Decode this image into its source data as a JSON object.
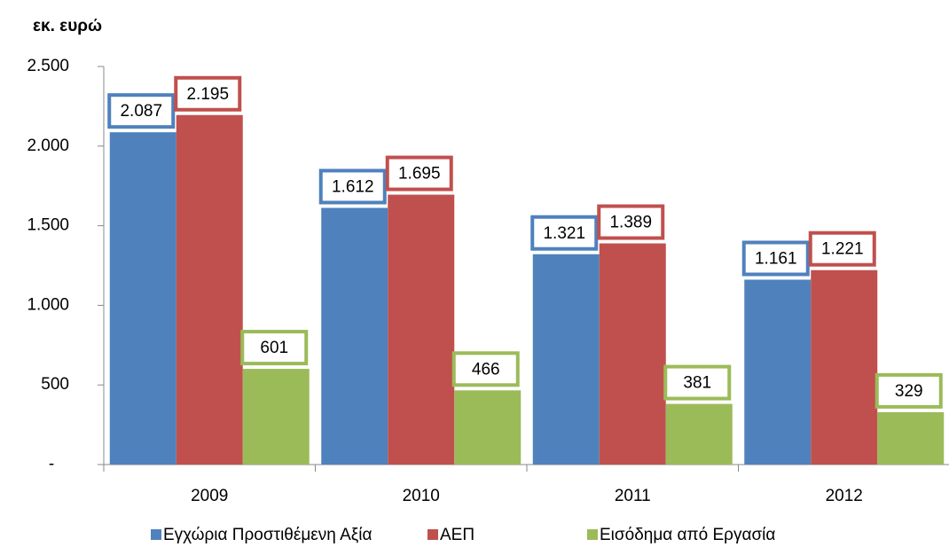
{
  "chart_data": {
    "type": "bar",
    "title": "εκ. ευρώ",
    "categories": [
      "2009",
      "2010",
      "2011",
      "2012"
    ],
    "series": [
      {
        "name": "Εγχώρια Προστιθέμενη Αξία",
        "color": "#4f81bd",
        "values": [
          2087,
          1612,
          1321,
          1161
        ],
        "value_labels": [
          "2.087",
          "1.612",
          "1.321",
          "1.161"
        ]
      },
      {
        "name": "ΑΕΠ",
        "color": "#c0504d",
        "values": [
          2195,
          1695,
          1389,
          1221
        ],
        "value_labels": [
          "2.195",
          "1.695",
          "1.389",
          "1.221"
        ]
      },
      {
        "name": "Εισόδημα από  Εργασία",
        "color": "#9bbb59",
        "values": [
          601,
          466,
          381,
          329
        ],
        "value_labels": [
          "601",
          "466",
          "381",
          "329"
        ]
      }
    ],
    "ylim": [
      0,
      2500
    ],
    "yticks": [
      {
        "value": 0,
        "label": "-"
      },
      500,
      {
        "value": 1000,
        "label": "1.000"
      },
      {
        "value": 1500,
        "label": "1.500"
      },
      {
        "value": 2000,
        "label": "2.000"
      },
      {
        "value": 2500,
        "label": "2.500"
      }
    ],
    "legend": "bottom",
    "grid": false
  }
}
